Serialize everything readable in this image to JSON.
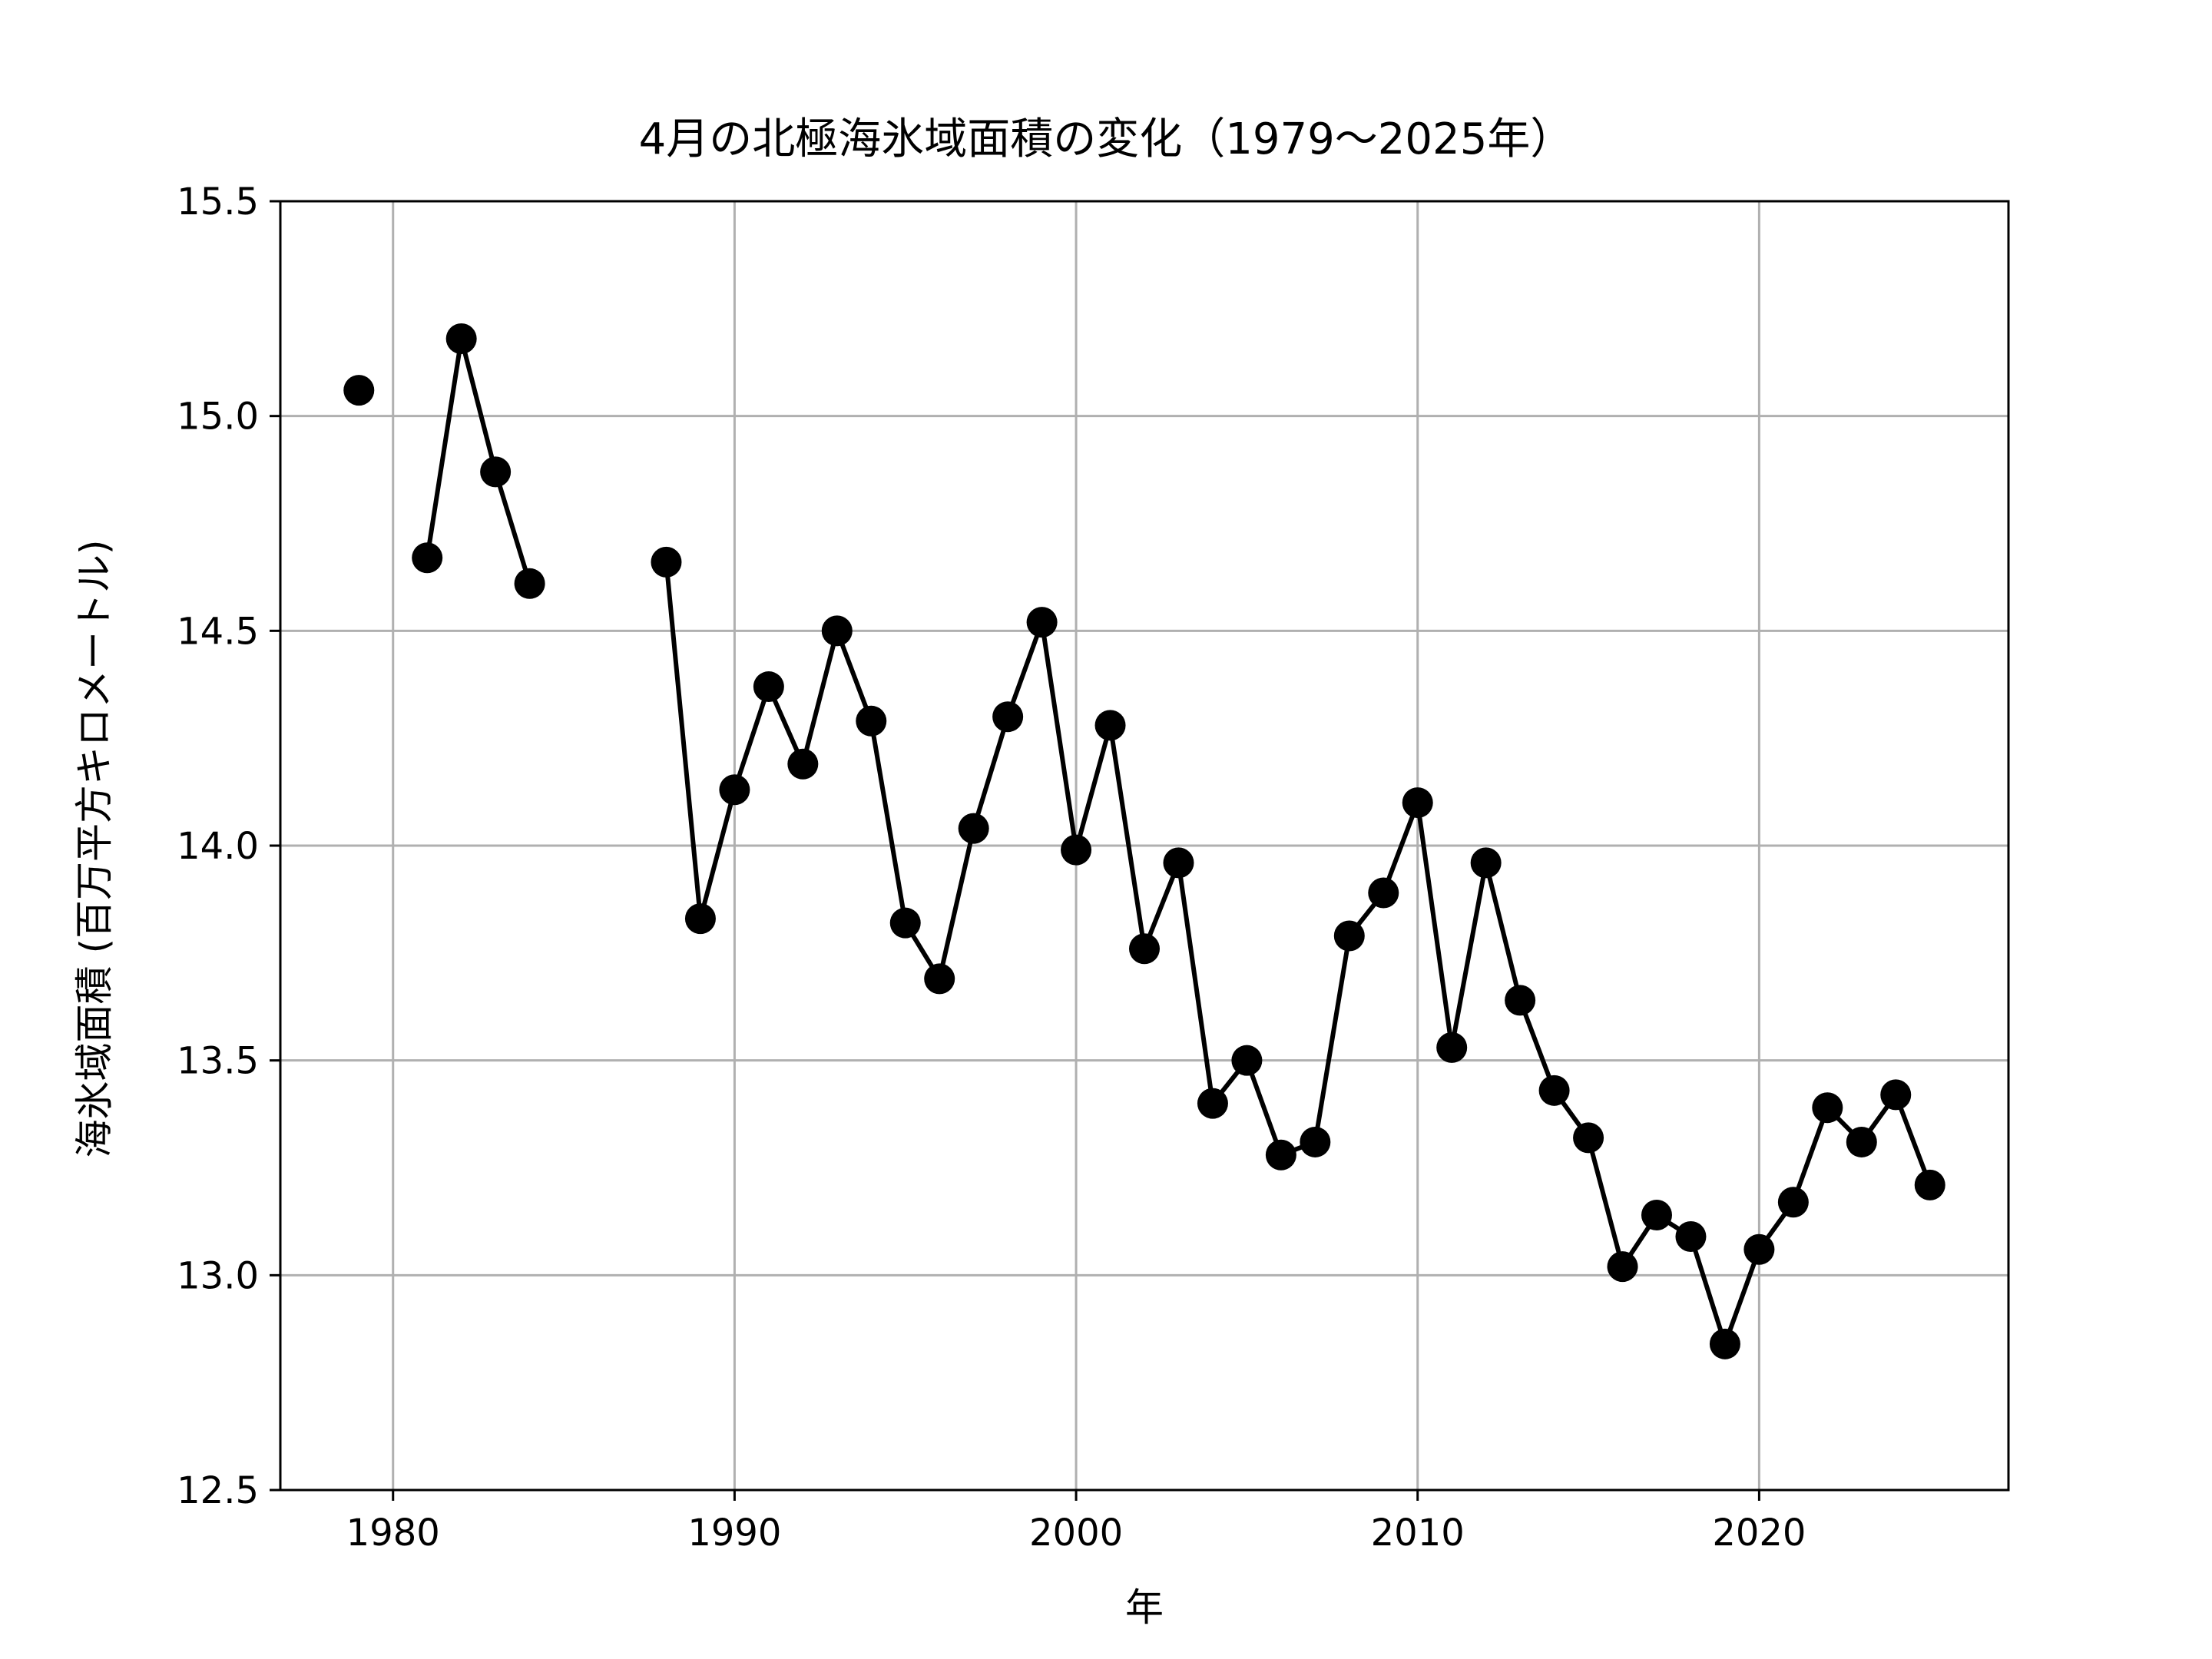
{
  "chart_data": {
    "type": "line",
    "title": "4月の北極海氷域面積の変化（1979〜2025年）",
    "xlabel": "年",
    "ylabel": "海氷域面積 (百万平方キロメートル)",
    "xlim": [
      1976.7,
      2027.3
    ],
    "ylim": [
      12.5,
      15.5
    ],
    "xticks": [
      1980,
      1990,
      2000,
      2010,
      2020
    ],
    "yticks": [
      "12.5",
      "13.0",
      "13.5",
      "14.0",
      "14.5",
      "15.0",
      "15.5"
    ],
    "grid": true,
    "series": [
      {
        "color": "#000000",
        "marker": "circle",
        "points": [
          [
            1979,
            15.06
          ],
          [
            1980,
            null
          ],
          [
            1981,
            14.67
          ],
          [
            1982,
            15.18
          ],
          [
            1983,
            14.87
          ],
          [
            1984,
            14.61
          ],
          [
            1985,
            null
          ],
          [
            1986,
            null
          ],
          [
            1987,
            null
          ],
          [
            1988,
            14.66
          ],
          [
            1989,
            13.83
          ],
          [
            1990,
            14.13
          ],
          [
            1991,
            14.37
          ],
          [
            1992,
            14.19
          ],
          [
            1993,
            14.5
          ],
          [
            1994,
            14.29
          ],
          [
            1995,
            13.82
          ],
          [
            1996,
            13.69
          ],
          [
            1997,
            14.04
          ],
          [
            1998,
            14.3
          ],
          [
            1999,
            14.52
          ],
          [
            2000,
            13.99
          ],
          [
            2001,
            14.28
          ],
          [
            2002,
            13.76
          ],
          [
            2003,
            13.96
          ],
          [
            2004,
            13.4
          ],
          [
            2005,
            13.5
          ],
          [
            2006,
            13.28
          ],
          [
            2007,
            13.31
          ],
          [
            2008,
            13.79
          ],
          [
            2009,
            13.89
          ],
          [
            2010,
            14.1
          ],
          [
            2011,
            13.53
          ],
          [
            2012,
            13.96
          ],
          [
            2013,
            13.64
          ],
          [
            2014,
            13.43
          ],
          [
            2015,
            13.32
          ],
          [
            2016,
            13.02
          ],
          [
            2017,
            13.14
          ],
          [
            2018,
            13.09
          ],
          [
            2019,
            12.84
          ],
          [
            2020,
            13.06
          ],
          [
            2021,
            13.17
          ],
          [
            2022,
            13.39
          ],
          [
            2023,
            13.31
          ],
          [
            2024,
            13.42
          ],
          [
            2025,
            13.21
          ]
        ]
      }
    ]
  }
}
